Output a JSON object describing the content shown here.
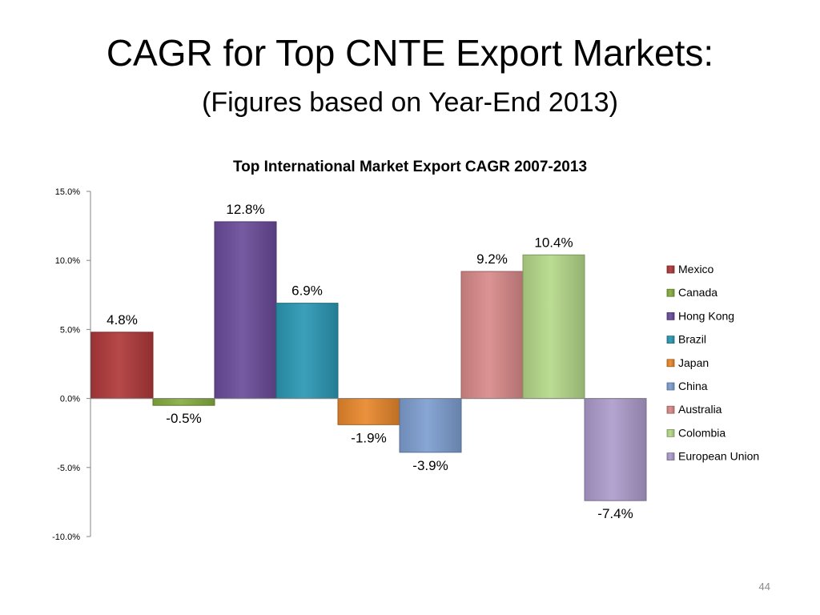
{
  "slide": {
    "title": "CAGR for Top CNTE Export Markets:",
    "subtitle": "(Figures based on Year-End 2013)",
    "page_number": "44"
  },
  "chart_data": {
    "type": "bar",
    "title": "Top International Market Export CAGR 2007-2013",
    "xlabel": "",
    "ylabel": "",
    "ylim": [
      -10,
      15
    ],
    "yticks": [
      15,
      10,
      5,
      0,
      -5,
      -10
    ],
    "ytick_labels": [
      "15.0%",
      "10.0%",
      "5.0%",
      "0.0%",
      "-5.0%",
      "-10.0%"
    ],
    "legend_position": "right",
    "grid": false,
    "series": [
      {
        "name": "Mexico",
        "value": 4.8,
        "label": "4.8%",
        "color": "#b0393a"
      },
      {
        "name": "Canada",
        "value": -0.5,
        "label": "-0.5%",
        "color": "#86ad3f"
      },
      {
        "name": "Hong Kong",
        "value": 12.8,
        "label": "12.8%",
        "color": "#6a4c9a"
      },
      {
        "name": "Brazil",
        "value": 6.9,
        "label": "6.9%",
        "color": "#2b98b4"
      },
      {
        "name": "Japan",
        "value": -1.9,
        "label": "-1.9%",
        "color": "#e8872c"
      },
      {
        "name": "China",
        "value": -3.9,
        "label": "-3.9%",
        "color": "#7e9ed0"
      },
      {
        "name": "Australia",
        "value": 9.2,
        "label": "9.2%",
        "color": "#d98a8a"
      },
      {
        "name": "Colombia",
        "value": 10.4,
        "label": "10.4%",
        "color": "#b5d98a"
      },
      {
        "name": "European Union",
        "value": -7.4,
        "label": "-7.4%",
        "color": "#ad9ccc"
      }
    ]
  }
}
